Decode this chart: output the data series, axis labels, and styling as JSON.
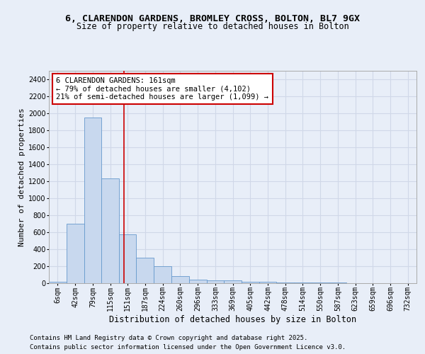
{
  "title1": "6, CLARENDON GARDENS, BROMLEY CROSS, BOLTON, BL7 9GX",
  "title2": "Size of property relative to detached houses in Bolton",
  "xlabel": "Distribution of detached houses by size in Bolton",
  "ylabel": "Number of detached properties",
  "bar_edges": [
    6,
    42,
    79,
    115,
    151,
    187,
    224,
    260,
    296,
    333,
    369,
    405,
    442,
    478,
    514,
    550,
    587,
    623,
    659,
    696,
    732,
    768
  ],
  "bar_heights": [
    15,
    700,
    1950,
    1230,
    575,
    300,
    200,
    80,
    40,
    30,
    30,
    20,
    15,
    10,
    5,
    5,
    5,
    2,
    2,
    2,
    2
  ],
  "bar_color": "#c8d8ee",
  "bar_edgecolor": "#6699cc",
  "background_color": "#e8eef8",
  "grid_color": "#d0d8e8",
  "vline_x": 161,
  "vline_color": "#cc0000",
  "annotation_text": "6 CLARENDON GARDENS: 161sqm\n← 79% of detached houses are smaller (4,102)\n21% of semi-detached houses are larger (1,099) →",
  "annotation_box_facecolor": "#ffffff",
  "annotation_box_edgecolor": "#cc0000",
  "ylim": [
    0,
    2500
  ],
  "yticks": [
    0,
    200,
    400,
    600,
    800,
    1000,
    1200,
    1400,
    1600,
    1800,
    2000,
    2200,
    2400
  ],
  "footer1": "Contains HM Land Registry data © Crown copyright and database right 2025.",
  "footer2": "Contains public sector information licensed under the Open Government Licence v3.0.",
  "title1_fontsize": 9.5,
  "title2_fontsize": 8.5,
  "ylabel_fontsize": 8,
  "xlabel_fontsize": 8.5,
  "tick_fontsize": 7,
  "annotation_fontsize": 7.5,
  "footer_fontsize": 6.5
}
